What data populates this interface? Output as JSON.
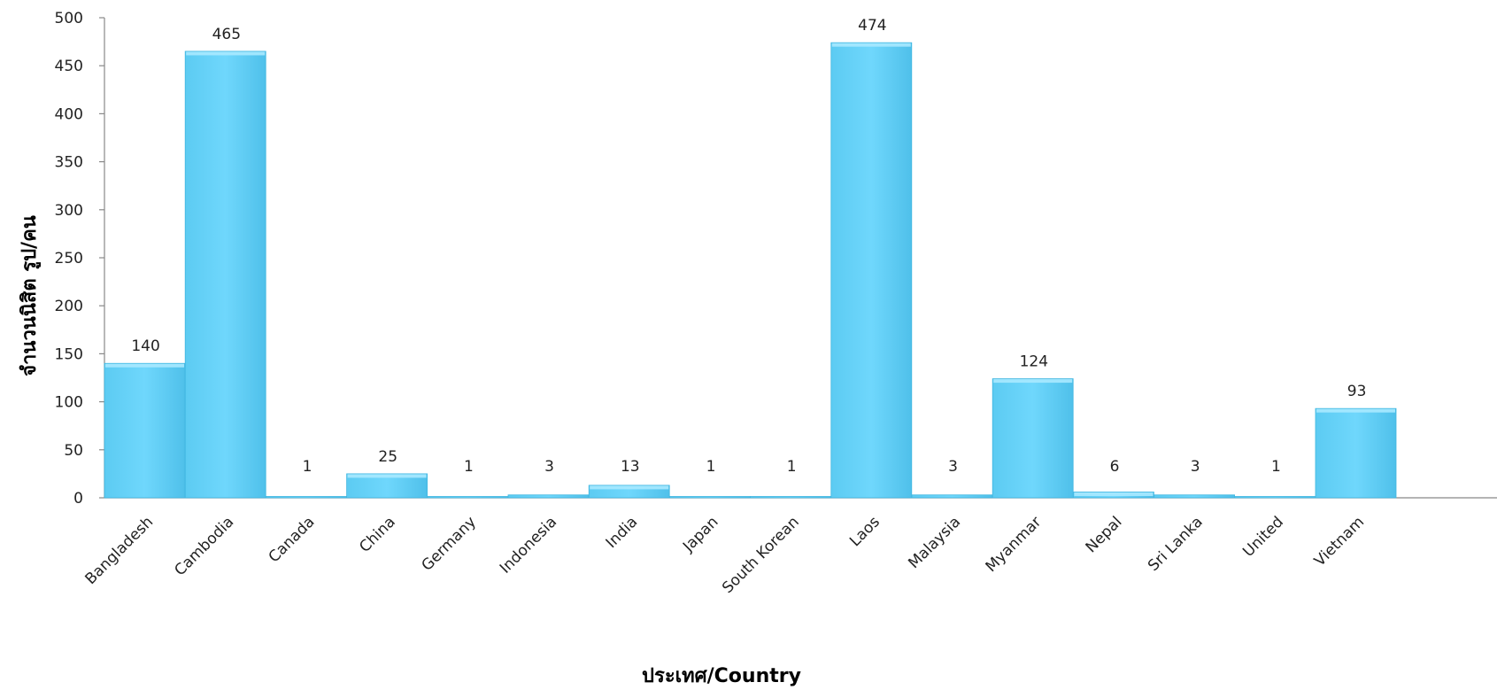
{
  "chart_data": {
    "type": "bar",
    "categories": [
      "Bangladesh",
      "Cambodia",
      "Canada",
      "China",
      "Germany",
      "Indonesia",
      "India",
      "Japan",
      "South Korean",
      "Laos",
      "Malaysia",
      "Myanmar",
      "Nepal",
      "Sri Lanka",
      "United",
      "Vietnam"
    ],
    "values": [
      140,
      465,
      1,
      25,
      1,
      3,
      13,
      1,
      1,
      474,
      3,
      124,
      6,
      3,
      1,
      93
    ],
    "xlabel": "ประเทศ/Country",
    "ylabel": "จำนวนนิสิต รูป/คน",
    "ylim": [
      0,
      500
    ],
    "yticks": [
      0,
      50,
      100,
      150,
      200,
      250,
      300,
      350,
      400,
      450,
      500
    ],
    "grid": false,
    "legend": "none",
    "colors": {
      "bar_fill": "#6DD5FA",
      "bar_top": "#A8E9FF",
      "bar_edge": "#3FB6E0",
      "axis": "#888888"
    }
  }
}
